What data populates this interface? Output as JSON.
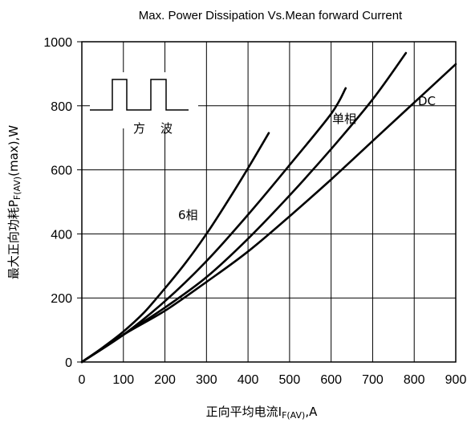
{
  "chart_data": {
    "type": "line",
    "title": "Max. Power Dissipation Vs.Mean forward Current",
    "xlabel_main": "正向平均电流I",
    "xlabel_sub": "F(AV)",
    "xlabel_tail": ",A",
    "ylabel_main": "最大正向功耗P",
    "ylabel_sub": "F(AV)",
    "ylabel_tail": "(max),W",
    "xlim": [
      0,
      900
    ],
    "ylim": [
      0,
      1000
    ],
    "xticks": [
      0,
      100,
      200,
      300,
      400,
      500,
      600,
      700,
      800,
      900
    ],
    "yticks": [
      0,
      200,
      400,
      600,
      800,
      1000
    ],
    "grid": true,
    "series": [
      {
        "name": "6相",
        "x": [
          0,
          50,
          100,
          150,
          200,
          250,
          300,
          350,
          400,
          450
        ],
        "y": [
          0,
          45,
          95,
          155,
          230,
          310,
          400,
          500,
          605,
          715
        ]
      },
      {
        "name": "单相",
        "x": [
          0,
          100,
          200,
          300,
          400,
          500,
          600,
          635
        ],
        "y": [
          0,
          85,
          190,
          315,
          460,
          615,
          775,
          855
        ]
      },
      {
        "name": "",
        "x": [
          0,
          100,
          200,
          300,
          400,
          500,
          600,
          700,
          780
        ],
        "y": [
          0,
          85,
          170,
          265,
          385,
          520,
          665,
          820,
          965
        ]
      },
      {
        "name": "DC",
        "x": [
          0,
          100,
          200,
          300,
          400,
          500,
          600,
          700,
          800,
          900
        ],
        "y": [
          0,
          85,
          160,
          250,
          345,
          455,
          570,
          690,
          810,
          930
        ]
      }
    ],
    "inset_labels": [
      "方",
      "波"
    ]
  }
}
